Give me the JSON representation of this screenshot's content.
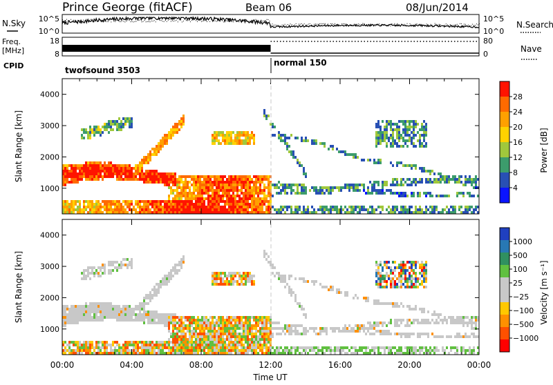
{
  "header": {
    "title": "Prince George (fitACF)",
    "beam": "Beam 06",
    "date": "08/Jun/2014"
  },
  "chart_data": [
    {
      "type": "line",
      "panel": "nsky-nsearch",
      "left_label": "N.Sky",
      "right_label": "N.Search",
      "left_ticks": [
        "10^5",
        "10^0"
      ],
      "right_ticks": [
        "10^5",
        "10^0"
      ],
      "x_range": [
        "00:00",
        "24:00"
      ]
    },
    {
      "type": "line",
      "panel": "freq-nave",
      "left_label_line1": "Freq.",
      "left_label_line2": "[MHz]",
      "right_label": "Nave",
      "left_ticks": [
        18,
        8
      ],
      "right_ticks": [
        80,
        0
      ]
    },
    {
      "type": "table",
      "panel": "cpid",
      "label": "CPID",
      "segments": [
        {
          "name": "twofsound 3503",
          "start_hour": 0,
          "end_hour": 12
        },
        {
          "name": "normal 150",
          "start_hour": 12,
          "end_hour": 24
        }
      ]
    },
    {
      "type": "heatmap",
      "panel": "power",
      "ylabel": "Slant Range [km]",
      "yticks": [
        1000,
        2000,
        3000,
        4000
      ],
      "ylim": [
        180,
        4500
      ],
      "colorbar_label": "Power [dB]",
      "colorbar_ticks": [
        "28",
        "24",
        "20",
        "16",
        "12",
        "8",
        "4"
      ],
      "colorbar_colors": [
        "#ff1400",
        "#ff6a00",
        "#ffa000",
        "#ffd200",
        "#a0c83c",
        "#3c9c6c",
        "#2850b4",
        "#0a14ff"
      ]
    },
    {
      "type": "heatmap",
      "panel": "velocity",
      "ylabel": "Slant Range [km]",
      "yticks": [
        1000,
        2000,
        3000,
        4000
      ],
      "ylim": [
        180,
        4500
      ],
      "colorbar_label": "Velocity [m s⁻¹]",
      "colorbar_ticks": [
        "1000",
        "500",
        "100",
        "25",
        "−25",
        "−100",
        "−500",
        "−1000"
      ],
      "colorbar_colors": [
        "#2040c0",
        "#2878b4",
        "#309060",
        "#60c040",
        "#c8c8c8",
        "#c8c8c8",
        "#ffc800",
        "#ff9000",
        "#ff5000",
        "#ff0000"
      ],
      "xlabel": "Time UT",
      "xticks": [
        "00:00",
        "04:00",
        "08:00",
        "12:00",
        "16:00",
        "20:00",
        "00:00"
      ]
    }
  ]
}
